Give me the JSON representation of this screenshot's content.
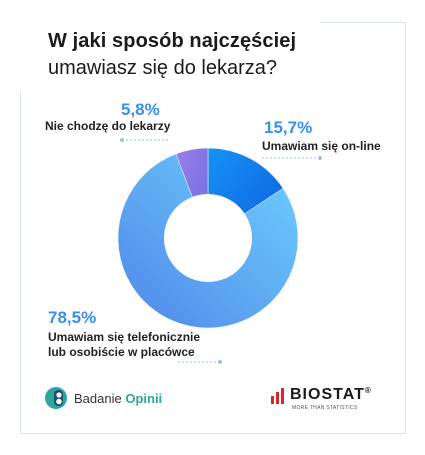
{
  "title": {
    "line1": "W jaki sposób najczęściej",
    "line2": "umawiasz się do lekarza?"
  },
  "chart_data": {
    "type": "pie",
    "donut": true,
    "slices": [
      {
        "label": "Umawiam się on-line",
        "value": 15.7,
        "value_label": "15,7%",
        "color": "#1f7ef0"
      },
      {
        "label": "Umawiam się telefonicznie lub osobiście w placówce",
        "value": 78.5,
        "value_label": "78,5%",
        "color": "#5a9fee"
      },
      {
        "label": "Nie chodzę do lekarzy",
        "value": 5.8,
        "value_label": "5,8%",
        "color": "#8a74e6"
      }
    ]
  },
  "labels": {
    "online_pct": "15,7%",
    "online_text": "Umawiam się on-line",
    "phone_pct": "78,5%",
    "phone_text_1": "Umawiam się telefonicznie",
    "phone_text_2": "lub osobiście w placówce",
    "none_pct": "5,8%",
    "none_text": "Nie chodzę do lekarzy"
  },
  "logos": {
    "left_plain": "Badanie",
    "left_bold": "Opinii",
    "right_name": "BIOSTAT",
    "right_reg": "®",
    "right_tagline": "MORE THAN STATISTICS"
  }
}
